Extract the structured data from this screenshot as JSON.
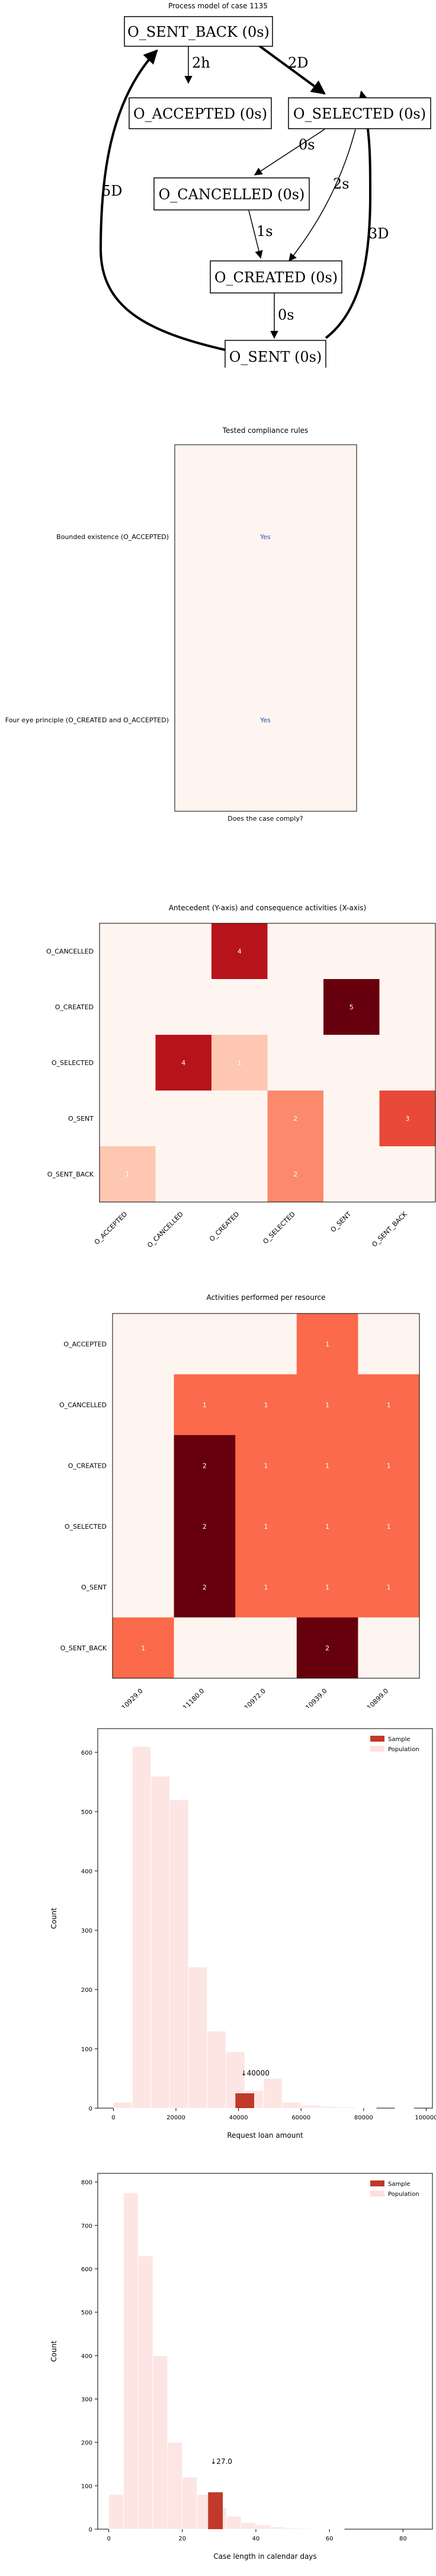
{
  "process_model": {
    "title": "Process model of case 1135",
    "nodes": [
      {
        "id": "sent_back",
        "label": "O_SENT_BACK (0s)"
      },
      {
        "id": "accepted",
        "label": "O_ACCEPTED (0s)"
      },
      {
        "id": "selected",
        "label": "O_SELECTED (0s)"
      },
      {
        "id": "cancelled",
        "label": "O_CANCELLED (0s)"
      },
      {
        "id": "created",
        "label": "O_CREATED (0s)"
      },
      {
        "id": "sent",
        "label": "O_SENT (0s)"
      }
    ],
    "edges": [
      {
        "from": "sent_back",
        "to": "accepted",
        "label": "2h",
        "bold": false
      },
      {
        "from": "sent_back",
        "to": "selected",
        "label": "2D",
        "bold": true
      },
      {
        "from": "selected",
        "to": "cancelled",
        "label": "0s",
        "bold": false
      },
      {
        "from": "selected",
        "to": "created",
        "label": "2s",
        "bold": false
      },
      {
        "from": "cancelled",
        "to": "created",
        "label": "1s",
        "bold": false
      },
      {
        "from": "created",
        "to": "sent",
        "label": "0s",
        "bold": false
      },
      {
        "from": "sent",
        "to": "sent_back",
        "label": "5D",
        "bold": true
      },
      {
        "from": "sent",
        "to": "selected",
        "label": "3D",
        "bold": true
      }
    ]
  },
  "compliance": {
    "title": "Tested compliance rules",
    "xlabel": "Does the case comply?",
    "rules": [
      {
        "label": "Bounded existence (O_ACCEPTED)",
        "value": "Yes"
      },
      {
        "label": "Four eye principle (O_CREATED and O_ACCEPTED)",
        "value": "Yes"
      }
    ]
  },
  "chart_data": [
    {
      "type": "heatmap",
      "title": "Antecedent (Y-axis) and consequence activities (X-axis)",
      "x_categories": [
        "O_ACCEPTED",
        "O_CANCELLED",
        "O_CREATED",
        "O_SELECTED",
        "O_SENT",
        "O_SENT_BACK"
      ],
      "y_categories": [
        "O_CANCELLED",
        "O_CREATED",
        "O_SELECTED",
        "O_SENT",
        "O_SENT_BACK"
      ],
      "values": [
        [
          0,
          0,
          4,
          0,
          0,
          0
        ],
        [
          0,
          0,
          0,
          0,
          5,
          0
        ],
        [
          0,
          4,
          1,
          0,
          0,
          0
        ],
        [
          0,
          0,
          0,
          2,
          0,
          3
        ],
        [
          1,
          0,
          0,
          2,
          0,
          0
        ]
      ],
      "cell_labels": [
        [
          "",
          "",
          "4",
          "",
          "",
          ""
        ],
        [
          "",
          "",
          "",
          "",
          "5",
          ""
        ],
        [
          "",
          "4",
          "1",
          "",
          "",
          ""
        ],
        [
          "",
          "",
          "",
          "2",
          "",
          "3"
        ],
        [
          "1",
          "",
          "",
          "2",
          "",
          ""
        ]
      ],
      "vmax": 5
    },
    {
      "type": "heatmap",
      "title": "Activities performed per resource",
      "x_categories": [
        "10929.0",
        "11180.0",
        "10972.0",
        "10939.0",
        "10899.0"
      ],
      "y_categories": [
        "O_ACCEPTED",
        "O_CANCELLED",
        "O_CREATED",
        "O_SELECTED",
        "O_SENT",
        "O_SENT_BACK"
      ],
      "values": [
        [
          0,
          0,
          0,
          1,
          0
        ],
        [
          0,
          1,
          1,
          1,
          1
        ],
        [
          0,
          2,
          1,
          1,
          1
        ],
        [
          0,
          2,
          1,
          1,
          1
        ],
        [
          0,
          2,
          1,
          1,
          1
        ],
        [
          1,
          0,
          0,
          2,
          0
        ]
      ],
      "cell_labels": [
        [
          "",
          "",
          "",
          "1",
          ""
        ],
        [
          "",
          "1",
          "1",
          "1",
          "1"
        ],
        [
          "",
          "2",
          "1",
          "1",
          "1"
        ],
        [
          "",
          "2",
          "1",
          "1",
          "1"
        ],
        [
          "",
          "2",
          "1",
          "1",
          "1"
        ],
        [
          "1",
          "",
          "",
          "2",
          ""
        ]
      ],
      "vmax": 2
    },
    {
      "type": "bar",
      "xlabel": "Request loan amount",
      "ylabel": "Count",
      "xlim": [
        -5000,
        102000
      ],
      "ylim": [
        0,
        640
      ],
      "x_ticks": [
        0,
        20000,
        40000,
        60000,
        80000,
        100000
      ],
      "y_ticks": [
        0,
        100,
        200,
        300,
        400,
        500,
        600
      ],
      "bin_width": 6000,
      "legend_position": "top-right",
      "series": [
        {
          "name": "Sample",
          "color": "#c0392b",
          "bin_starts": [
            39000
          ],
          "values": [
            25
          ]
        },
        {
          "name": "Population",
          "color": "#fde0df",
          "bin_starts": [
            0,
            6000,
            12000,
            18000,
            24000,
            30000,
            36000,
            42000,
            48000,
            54000,
            60000,
            66000,
            72000,
            78000,
            84000,
            90000
          ],
          "values": [
            10,
            610,
            560,
            520,
            238,
            130,
            95,
            30,
            50,
            10,
            5,
            3,
            2,
            1,
            0,
            1
          ]
        }
      ],
      "annotation": {
        "text": "↓40000",
        "x": 40000,
        "y": 55
      }
    },
    {
      "type": "bar",
      "xlabel": "Case length in calendar days",
      "ylabel": "Count",
      "xlim": [
        -3,
        88
      ],
      "ylim": [
        0,
        820
      ],
      "x_ticks": [
        0,
        20,
        40,
        60,
        80
      ],
      "y_ticks": [
        0,
        100,
        200,
        300,
        400,
        500,
        600,
        700,
        800
      ],
      "bin_width": 4,
      "legend_position": "top-right",
      "series": [
        {
          "name": "Sample",
          "color": "#c0392b",
          "bin_starts": [
            27
          ],
          "values": [
            85
          ]
        },
        {
          "name": "Population",
          "color": "#fde0df",
          "bin_starts": [
            0,
            4,
            8,
            12,
            16,
            20,
            24,
            28,
            32,
            36,
            40,
            44,
            48,
            52,
            56,
            60
          ],
          "values": [
            80,
            775,
            630,
            400,
            200,
            120,
            80,
            50,
            30,
            15,
            10,
            5,
            3,
            2,
            1,
            1
          ]
        }
      ],
      "annotation": {
        "text": "↓27.0",
        "x": 27,
        "y": 150
      }
    }
  ]
}
